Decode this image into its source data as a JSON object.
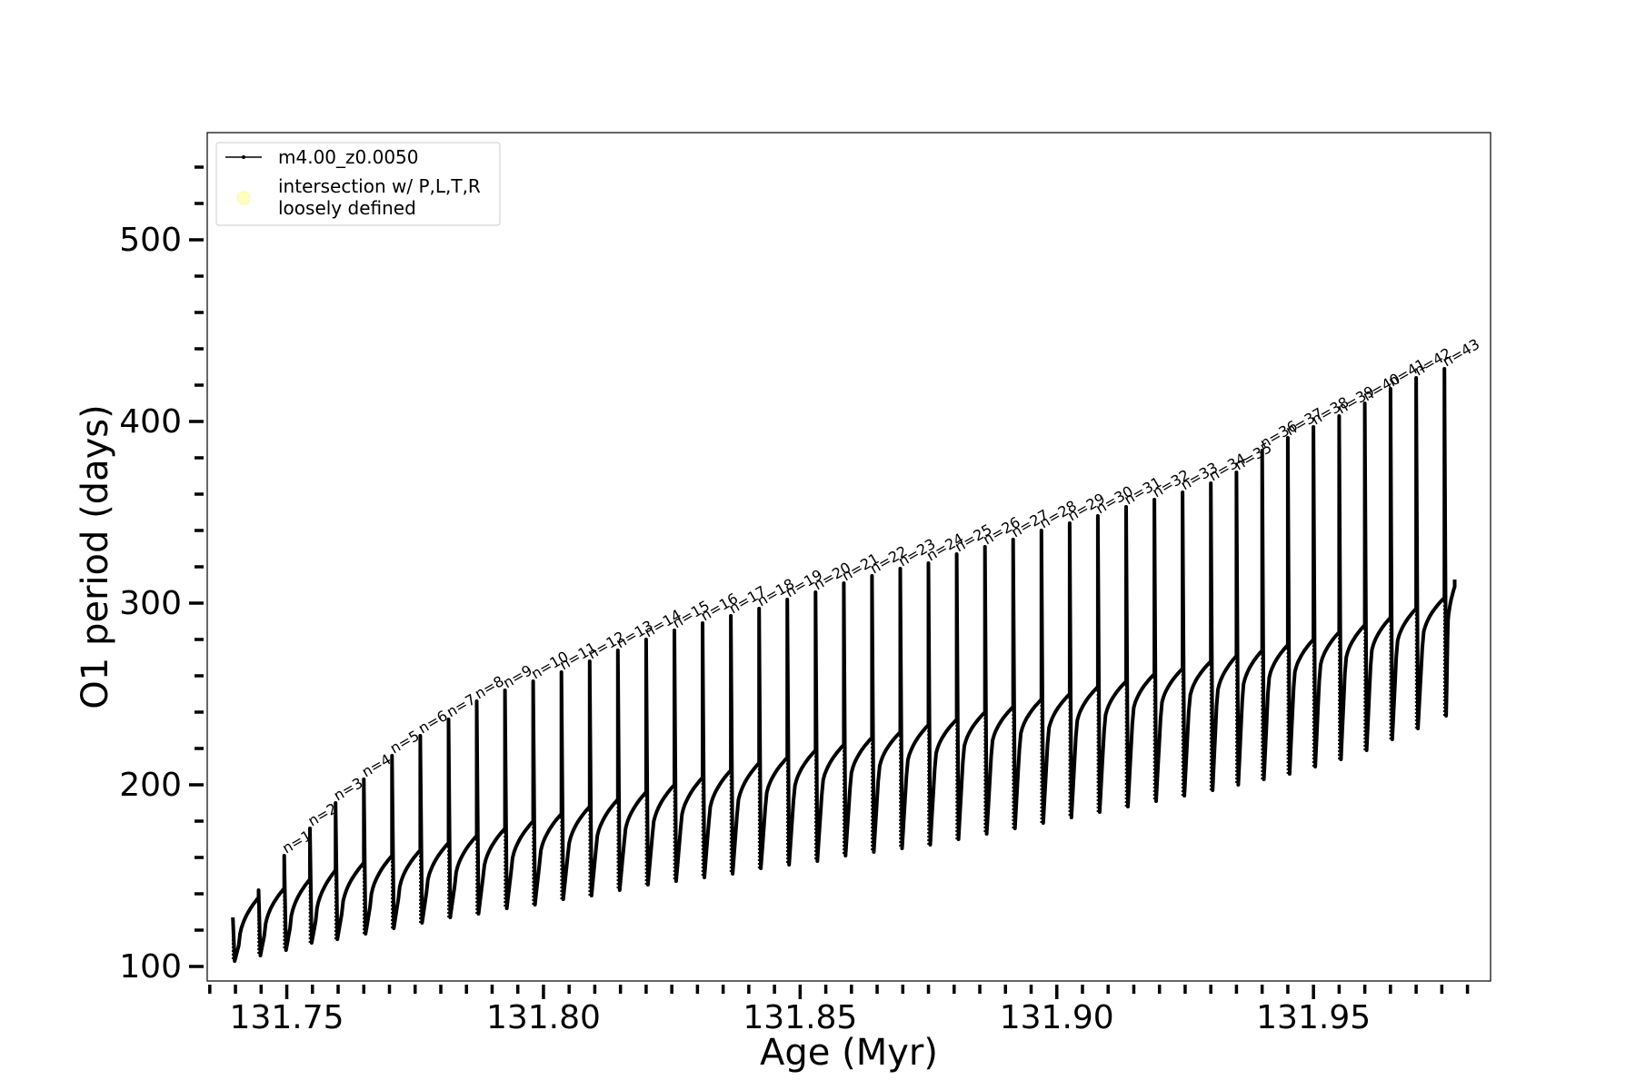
{
  "chart_data": {
    "type": "line",
    "xlabel": "Age (Myr)",
    "ylabel": "O1 period (days)",
    "xlim": [
      131.7345,
      131.9845
    ],
    "ylim": [
      92,
      559
    ],
    "x_ticks": [
      131.75,
      131.8,
      131.85,
      131.9,
      131.95
    ],
    "x_tick_labels": [
      "131.75",
      "131.80",
      "131.85",
      "131.90",
      "131.95"
    ],
    "y_ticks": [
      100,
      200,
      300,
      400,
      500
    ],
    "y_tick_labels": [
      "100",
      "200",
      "300",
      "400",
      "500"
    ],
    "grid": false,
    "legend_position": "top-left",
    "legend": [
      {
        "label": "m4.00_z0.0050",
        "marker": "line-with-dots",
        "color": "#000000"
      },
      {
        "label": "intersection w/ P,L,T,R\nloosely defined",
        "marker": "circle",
        "color": "#ffffc0"
      }
    ],
    "series": [
      {
        "name": "m4.00_z0.0050",
        "color": "#000000",
        "start_age": 131.7395,
        "start_period": 127,
        "pulses": [
          {
            "n": null,
            "age": 131.7395,
            "peak": 127,
            "min": 103,
            "rest": 112,
            "top": 138
          },
          {
            "n": null,
            "age": 131.7445,
            "peak": 142,
            "min": 106,
            "rest": 118,
            "top": 143
          },
          {
            "n": 1,
            "age": 131.7495,
            "peak": 161,
            "min": 109,
            "rest": 122,
            "top": 148
          },
          {
            "n": 2,
            "age": 131.7545,
            "peak": 176,
            "min": 113,
            "rest": 126,
            "top": 153
          },
          {
            "n": 3,
            "age": 131.7595,
            "peak": 190,
            "min": 115,
            "rest": 130,
            "top": 157
          },
          {
            "n": 4,
            "age": 131.765,
            "peak": 203,
            "min": 118,
            "rest": 134,
            "top": 161
          },
          {
            "n": 5,
            "age": 131.7705,
            "peak": 216,
            "min": 121,
            "rest": 138,
            "top": 164
          },
          {
            "n": 6,
            "age": 131.776,
            "peak": 227,
            "min": 124,
            "rest": 142,
            "top": 168
          },
          {
            "n": 7,
            "age": 131.7815,
            "peak": 236,
            "min": 127,
            "rest": 146,
            "top": 172
          },
          {
            "n": 8,
            "age": 131.787,
            "peak": 246,
            "min": 129,
            "rest": 150,
            "top": 176
          },
          {
            "n": 9,
            "age": 131.7925,
            "peak": 252,
            "min": 132,
            "rest": 154,
            "top": 180
          },
          {
            "n": 10,
            "age": 131.798,
            "peak": 257,
            "min": 134,
            "rest": 158,
            "top": 184
          },
          {
            "n": 11,
            "age": 131.8035,
            "peak": 262,
            "min": 137,
            "rest": 162,
            "top": 188
          },
          {
            "n": 12,
            "age": 131.809,
            "peak": 268,
            "min": 139,
            "rest": 166,
            "top": 192
          },
          {
            "n": 13,
            "age": 131.8145,
            "peak": 274,
            "min": 142,
            "rest": 170,
            "top": 196
          },
          {
            "n": 14,
            "age": 131.82,
            "peak": 280,
            "min": 145,
            "rest": 174,
            "top": 200
          },
          {
            "n": 15,
            "age": 131.8255,
            "peak": 285,
            "min": 147,
            "rest": 178,
            "top": 204
          },
          {
            "n": 16,
            "age": 131.831,
            "peak": 289,
            "min": 149,
            "rest": 182,
            "top": 208
          },
          {
            "n": 17,
            "age": 131.8365,
            "peak": 293,
            "min": 151,
            "rest": 186,
            "top": 212
          },
          {
            "n": 18,
            "age": 131.842,
            "peak": 297,
            "min": 154,
            "rest": 190,
            "top": 215
          },
          {
            "n": 19,
            "age": 131.8475,
            "peak": 302,
            "min": 156,
            "rest": 194,
            "top": 219
          },
          {
            "n": 20,
            "age": 131.853,
            "peak": 306,
            "min": 158,
            "rest": 197,
            "top": 222
          },
          {
            "n": 21,
            "age": 131.8585,
            "peak": 311,
            "min": 161,
            "rest": 201,
            "top": 226
          },
          {
            "n": 22,
            "age": 131.864,
            "peak": 315,
            "min": 163,
            "rest": 205,
            "top": 229
          },
          {
            "n": 23,
            "age": 131.8695,
            "peak": 319,
            "min": 165,
            "rest": 208,
            "top": 233
          },
          {
            "n": 24,
            "age": 131.875,
            "peak": 322,
            "min": 167,
            "rest": 212,
            "top": 236
          },
          {
            "n": 25,
            "age": 131.8805,
            "peak": 327,
            "min": 170,
            "rest": 216,
            "top": 240
          },
          {
            "n": 26,
            "age": 131.886,
            "peak": 331,
            "min": 173,
            "rest": 219,
            "top": 243
          },
          {
            "n": 27,
            "age": 131.8915,
            "peak": 335,
            "min": 176,
            "rest": 223,
            "top": 247
          },
          {
            "n": 28,
            "age": 131.897,
            "peak": 340,
            "min": 179,
            "rest": 226,
            "top": 250
          },
          {
            "n": 29,
            "age": 131.9025,
            "peak": 344,
            "min": 182,
            "rest": 230,
            "top": 254
          },
          {
            "n": 30,
            "age": 131.908,
            "peak": 348,
            "min": 185,
            "rest": 233,
            "top": 257
          },
          {
            "n": 31,
            "age": 131.9135,
            "peak": 353,
            "min": 188,
            "rest": 237,
            "top": 261
          },
          {
            "n": 32,
            "age": 131.919,
            "peak": 357,
            "min": 191,
            "rest": 240,
            "top": 264
          },
          {
            "n": 33,
            "age": 131.9245,
            "peak": 361,
            "min": 194,
            "rest": 244,
            "top": 268
          },
          {
            "n": 34,
            "age": 131.93,
            "peak": 366,
            "min": 197,
            "rest": 247,
            "top": 271
          },
          {
            "n": 35,
            "age": 131.935,
            "peak": 372,
            "min": 200,
            "rest": 250,
            "top": 274
          },
          {
            "n": 36,
            "age": 131.94,
            "peak": 384,
            "min": 203,
            "rest": 254,
            "top": 277
          },
          {
            "n": 37,
            "age": 131.945,
            "peak": 391,
            "min": 206,
            "rest": 257,
            "top": 280
          },
          {
            "n": 38,
            "age": 131.95,
            "peak": 397,
            "min": 210,
            "rest": 261,
            "top": 284
          },
          {
            "n": 39,
            "age": 131.955,
            "peak": 403,
            "min": 214,
            "rest": 265,
            "top": 288
          },
          {
            "n": 40,
            "age": 131.96,
            "peak": 410,
            "min": 219,
            "rest": 269,
            "top": 292
          },
          {
            "n": 41,
            "age": 131.965,
            "peak": 418,
            "min": 225,
            "rest": 274,
            "top": 297
          },
          {
            "n": 42,
            "age": 131.97,
            "peak": 424,
            "min": 231,
            "rest": 279,
            "top": 303
          },
          {
            "n": 43,
            "age": 131.9755,
            "peak": 429,
            "min": 238,
            "rest": 285,
            "top": 309
          }
        ],
        "end_age": 131.9775,
        "end_period": 313
      }
    ],
    "pulse_labels": [
      "n=1",
      "n=2",
      "n=3",
      "n=4",
      "n=5",
      "n=6",
      "n=7",
      "n=8",
      "n=9",
      "n=10",
      "n=11",
      "n=12",
      "n=13",
      "n=14",
      "n=15",
      "n=16",
      "n=17",
      "n=18",
      "n=19",
      "n=20",
      "n=21",
      "n=22",
      "n=23",
      "n=24",
      "n=25",
      "n=26",
      "n=27",
      "n=28",
      "n=29",
      "n=30",
      "n=31",
      "n=32",
      "n=33",
      "n=34",
      "n=35",
      "n=36",
      "n=37",
      "n=38",
      "n=39",
      "n=40",
      "n=41",
      "n=42",
      "n=43"
    ]
  }
}
